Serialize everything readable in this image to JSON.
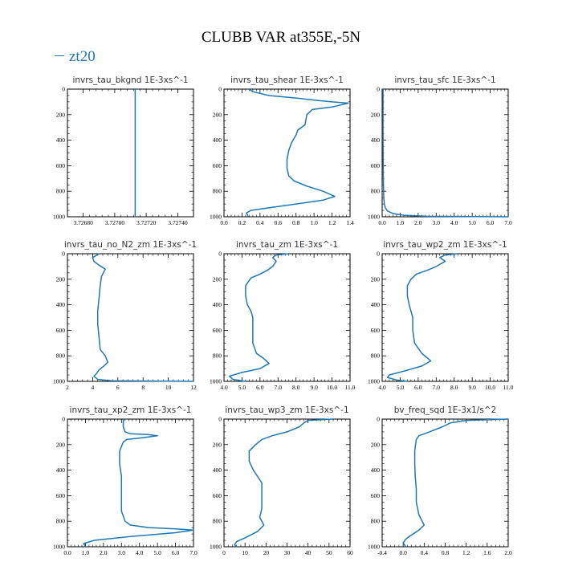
{
  "figure": {
    "title": "CLUBB VAR at355E,-5N",
    "legend": [
      {
        "name": "zt20",
        "color": "#1f77b4"
      }
    ]
  },
  "chart_data": [
    {
      "type": "line",
      "title": "invrs_tau_bkgnd   1E-3xs^-1",
      "xlim": [
        3.7267,
        3.7275
      ],
      "ylim": [
        0,
        1000
      ],
      "y_inverted": true,
      "xticks": [
        3.7268,
        3.727,
        3.7272,
        3.7274
      ],
      "xtick_labels": [
        "3.72680",
        "3.72700",
        "3.72720",
        "3.72740"
      ],
      "yticks": [
        0,
        200,
        400,
        600,
        800,
        1000
      ],
      "yminor": [
        50,
        100,
        150,
        250,
        300,
        350,
        450,
        500,
        550,
        650,
        700,
        750,
        850,
        900,
        950
      ],
      "series": [
        {
          "name": "zt20",
          "x": [
            3.72713,
            3.72713
          ],
          "y": [
            0,
            1000
          ]
        }
      ]
    },
    {
      "type": "line",
      "title": "invrs_tau_shear   1E-3xs^-1",
      "xlim": [
        0.0,
        1.4
      ],
      "ylim": [
        0,
        1000
      ],
      "y_inverted": true,
      "xticks": [
        0.0,
        0.2,
        0.4,
        0.6,
        0.8,
        1.0,
        1.2,
        1.4
      ],
      "xtick_labels": [
        "0.0",
        "0.2",
        "0.4",
        "0.6",
        "0.8",
        "1.0",
        "1.2",
        "1.4"
      ],
      "yticks": [
        0,
        200,
        400,
        600,
        800,
        1000
      ],
      "yminor": [
        50,
        100,
        150,
        250,
        300,
        350,
        450,
        500,
        550,
        650,
        700,
        750,
        850,
        900,
        950
      ],
      "series": [
        {
          "name": "zt20",
          "x": [
            0.28,
            0.32,
            0.5,
            0.8,
            1.05,
            1.2,
            1.38,
            1.2,
            0.98,
            0.92,
            0.9,
            0.82,
            0.8,
            0.75,
            0.72,
            0.7,
            0.7,
            0.72,
            0.78,
            0.92,
            1.1,
            1.23,
            1.1,
            0.6,
            0.3,
            0.25,
            0.27
          ],
          "y": [
            0,
            20,
            50,
            70,
            90,
            100,
            110,
            140,
            160,
            200,
            280,
            320,
            360,
            420,
            480,
            550,
            620,
            680,
            720,
            760,
            800,
            840,
            870,
            920,
            950,
            970,
            1000
          ]
        }
      ]
    },
    {
      "type": "line",
      "title": "invrs_tau_sfc   1E-3xs^-1",
      "xlim": [
        0.0,
        7.0
      ],
      "ylim": [
        0,
        1000
      ],
      "y_inverted": true,
      "xticks": [
        0.0,
        1.0,
        2.0,
        3.0,
        4.0,
        5.0,
        6.0,
        7.0
      ],
      "xtick_labels": [
        "0.0",
        "1.0",
        "2.0",
        "3.0",
        "4.0",
        "5.0",
        "6.0",
        "7.0"
      ],
      "yticks": [
        0,
        200,
        400,
        600,
        800,
        1000
      ],
      "yminor": [
        50,
        100,
        150,
        250,
        300,
        350,
        450,
        500,
        550,
        650,
        700,
        750,
        850,
        900,
        950
      ],
      "series": [
        {
          "name": "zt20",
          "x": [
            0.05,
            0.05,
            0.06,
            0.07,
            0.09,
            0.12,
            0.18,
            0.3,
            0.6,
            1.2,
            2.5,
            7.0
          ],
          "y": [
            0,
            400,
            600,
            750,
            850,
            900,
            930,
            955,
            975,
            988,
            996,
            1000
          ]
        }
      ]
    },
    {
      "type": "line",
      "title": "invrs_tau_no_N2_zm   1E-3xs^-1",
      "xlim": [
        2,
        12
      ],
      "ylim": [
        0,
        1000
      ],
      "y_inverted": true,
      "xticks": [
        2,
        4,
        6,
        8,
        10,
        12
      ],
      "xtick_labels": [
        "2",
        "4",
        "6",
        "8",
        "10",
        "12"
      ],
      "yticks": [
        0,
        200,
        400,
        600,
        800,
        1000
      ],
      "yminor": [
        50,
        100,
        150,
        250,
        300,
        350,
        450,
        500,
        550,
        650,
        700,
        750,
        850,
        900,
        950
      ],
      "series": [
        {
          "name": "zt20",
          "x": [
            4.5,
            4.0,
            4.1,
            4.5,
            5.0,
            4.7,
            4.6,
            4.5,
            4.4,
            4.4,
            4.5,
            4.6,
            5.0,
            5.2,
            4.9,
            4.5,
            4.3,
            4.1,
            4.4,
            5.5,
            12.0
          ],
          "y": [
            0,
            30,
            60,
            90,
            120,
            180,
            250,
            350,
            450,
            550,
            650,
            750,
            800,
            850,
            880,
            910,
            940,
            960,
            985,
            995,
            1000
          ]
        }
      ]
    },
    {
      "type": "line",
      "title": "invrs_tau_zm   1E-3xs^-1",
      "xlim": [
        4.0,
        11.0
      ],
      "ylim": [
        0,
        1000
      ],
      "y_inverted": true,
      "xticks": [
        4.0,
        5.0,
        6.0,
        7.0,
        8.0,
        9.0,
        10.0,
        11.0
      ],
      "xtick_labels": [
        "4.0",
        "5.0",
        "6.0",
        "7.0",
        "8.0",
        "9.0",
        "10.0",
        "11.0"
      ],
      "yticks": [
        0,
        200,
        400,
        600,
        800,
        1000
      ],
      "yminor": [
        50,
        100,
        150,
        250,
        300,
        350,
        450,
        500,
        550,
        650,
        700,
        750,
        850,
        900,
        950
      ],
      "series": [
        {
          "name": "zt20",
          "x": [
            7.6,
            6.9,
            6.7,
            6.9,
            6.7,
            6.4,
            6.0,
            5.5,
            5.2,
            5.2,
            5.3,
            5.5,
            5.6,
            5.6,
            5.6,
            5.8,
            6.2,
            6.5,
            6.0,
            5.0,
            4.3,
            4.5,
            5.2
          ],
          "y": [
            0,
            10,
            30,
            60,
            100,
            130,
            160,
            190,
            250,
            330,
            400,
            450,
            500,
            600,
            700,
            780,
            820,
            860,
            900,
            930,
            960,
            985,
            1000
          ]
        }
      ]
    },
    {
      "type": "line",
      "title": "invrs_tau_wp2_zm   1E-3xs^-1",
      "xlim": [
        4.0,
        11.0
      ],
      "ylim": [
        0,
        1000
      ],
      "y_inverted": true,
      "xticks": [
        4.0,
        5.0,
        6.0,
        7.0,
        8.0,
        9.0,
        10.0,
        11.0
      ],
      "xtick_labels": [
        "4.0",
        "5.0",
        "6.0",
        "7.0",
        "8.0",
        "9.0",
        "10.0",
        "11.0"
      ],
      "yticks": [
        0,
        200,
        400,
        600,
        800,
        1000
      ],
      "yminor": [
        50,
        100,
        150,
        250,
        300,
        350,
        450,
        500,
        550,
        650,
        700,
        750,
        850,
        900,
        950
      ],
      "series": [
        {
          "name": "zt20",
          "x": [
            8.2,
            7.5,
            7.2,
            7.5,
            7.0,
            6.5,
            5.9,
            5.6,
            5.4,
            5.4,
            5.5,
            5.6,
            5.7,
            5.7,
            5.8,
            6.2,
            6.7,
            6.2,
            5.2,
            4.4,
            4.3,
            4.8,
            5.4
          ],
          "y": [
            0,
            10,
            30,
            60,
            100,
            130,
            160,
            200,
            250,
            330,
            400,
            450,
            500,
            600,
            700,
            780,
            840,
            880,
            920,
            950,
            970,
            990,
            1000
          ]
        }
      ]
    },
    {
      "type": "line",
      "title": "invrs_tau_xp2_zm   1E-3xs^-1",
      "xlim": [
        0.0,
        7.0
      ],
      "ylim": [
        0,
        1000
      ],
      "y_inverted": true,
      "xticks": [
        0.0,
        1.0,
        2.0,
        3.0,
        4.0,
        5.0,
        6.0,
        7.0
      ],
      "xtick_labels": [
        "0.0",
        "1.0",
        "2.0",
        "3.0",
        "4.0",
        "5.0",
        "6.0",
        "7.0"
      ],
      "yticks": [
        0,
        200,
        400,
        600,
        800,
        1000
      ],
      "yminor": [
        50,
        100,
        150,
        250,
        300,
        350,
        450,
        500,
        550,
        650,
        700,
        750,
        850,
        900,
        950
      ],
      "series": [
        {
          "name": "zt20",
          "x": [
            3.1,
            3.1,
            3.2,
            3.5,
            4.4,
            5.0,
            4.2,
            3.3,
            3.1,
            2.9,
            2.9,
            3.0,
            3.0,
            3.0,
            3.2,
            3.5,
            4.5,
            6.0,
            7.0,
            6.0,
            3.5,
            1.5,
            0.9,
            1.0
          ],
          "y": [
            0,
            60,
            100,
            115,
            120,
            130,
            145,
            160,
            180,
            250,
            350,
            450,
            600,
            720,
            800,
            830,
            850,
            860,
            870,
            890,
            920,
            950,
            975,
            1000
          ]
        }
      ]
    },
    {
      "type": "line",
      "title": "invrs_tau_wp3_zm   1E-3xs^-1",
      "xlim": [
        0,
        60
      ],
      "ylim": [
        0,
        1000
      ],
      "y_inverted": true,
      "xticks": [
        0,
        10,
        20,
        30,
        40,
        50,
        60
      ],
      "xtick_labels": [
        "0",
        "10",
        "20",
        "30",
        "40",
        "50",
        "60"
      ],
      "yticks": [
        0,
        200,
        400,
        600,
        800,
        1000
      ],
      "yminor": [
        50,
        100,
        150,
        250,
        300,
        350,
        450,
        500,
        550,
        650,
        700,
        750,
        850,
        900,
        950
      ],
      "series": [
        {
          "name": "zt20",
          "x": [
            52,
            40,
            38,
            36,
            30,
            23,
            18,
            15,
            12,
            12,
            14,
            16,
            18,
            18,
            18,
            17,
            19,
            16,
            10,
            6,
            5,
            6
          ],
          "y": [
            0,
            10,
            30,
            60,
            100,
            130,
            160,
            200,
            250,
            330,
            400,
            450,
            500,
            600,
            700,
            770,
            830,
            880,
            930,
            960,
            985,
            1000
          ]
        }
      ]
    },
    {
      "type": "line",
      "title": "bv_freq_sqd   1E-3x1/s^2",
      "xlim": [
        -0.4,
        2.0
      ],
      "ylim": [
        0,
        1000
      ],
      "y_inverted": true,
      "xticks": [
        -0.4,
        0.0,
        0.4,
        0.8,
        1.2,
        1.6,
        2.0
      ],
      "xtick_labels": [
        "-0.4",
        "0.0",
        "0.4",
        "0.8",
        "1.2",
        "1.6",
        "2.0"
      ],
      "yticks": [
        0,
        200,
        400,
        600,
        800,
        1000
      ],
      "yminor": [
        50,
        100,
        150,
        250,
        300,
        350,
        450,
        500,
        550,
        650,
        700,
        750,
        850,
        900,
        950
      ],
      "series": [
        {
          "name": "zt20",
          "x": [
            2.0,
            1.2,
            0.9,
            0.75,
            0.5,
            0.3,
            0.25,
            0.22,
            0.22,
            0.23,
            0.25,
            0.25,
            0.3,
            0.4,
            0.3,
            0.15,
            0.05,
            0.0,
            0.05
          ],
          "y": [
            0,
            10,
            30,
            60,
            100,
            130,
            160,
            250,
            350,
            450,
            550,
            650,
            750,
            830,
            870,
            910,
            940,
            970,
            1000
          ]
        }
      ]
    }
  ]
}
